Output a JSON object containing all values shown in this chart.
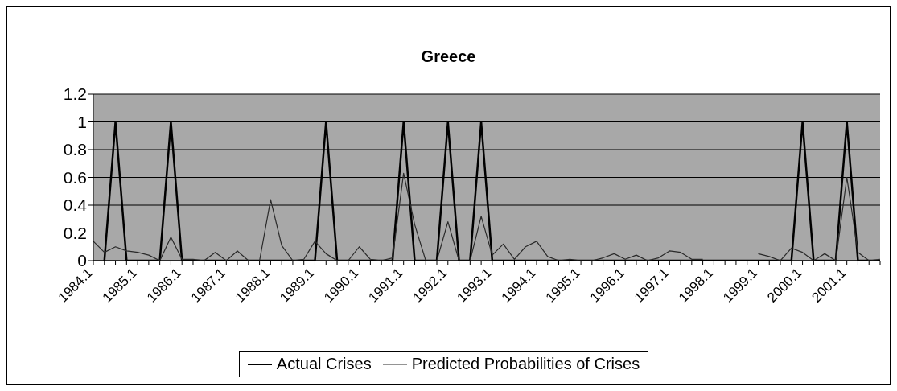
{
  "chart_data": {
    "type": "line",
    "title": "Greece",
    "categories": [
      "1984.1",
      null,
      null,
      null,
      "1985.1",
      null,
      null,
      null,
      "1986.1",
      null,
      null,
      null,
      "1987.1",
      null,
      null,
      null,
      "1988.1",
      null,
      null,
      null,
      "1989.1",
      null,
      null,
      null,
      "1990.1",
      null,
      null,
      null,
      "1991.1",
      null,
      null,
      null,
      "1992.1",
      null,
      null,
      null,
      "1993.1",
      null,
      null,
      null,
      "1994.1",
      null,
      null,
      null,
      "1995.1",
      null,
      null,
      null,
      "1996.1",
      null,
      null,
      null,
      "1997.1",
      null,
      null,
      null,
      "1998.1",
      null,
      null,
      null,
      "1999.1",
      null,
      null,
      null,
      "2000.1",
      null,
      null,
      null,
      "2001.1",
      null,
      null,
      null
    ],
    "series": [
      {
        "name": "Actual Crises",
        "color": "#000000",
        "values": [
          null,
          0,
          1,
          0,
          0,
          0,
          0,
          1,
          0,
          0,
          0,
          0,
          0,
          0,
          0,
          0,
          0,
          0,
          0,
          0,
          0,
          1,
          0,
          0,
          0,
          0,
          0,
          0,
          1,
          0,
          0,
          0,
          1,
          0,
          0,
          1,
          0,
          0,
          0,
          0,
          0,
          0,
          0,
          0,
          0,
          0,
          0,
          0,
          0,
          0,
          0,
          0,
          0,
          0,
          0,
          0,
          0,
          0,
          0,
          0,
          0,
          0,
          0,
          0,
          1,
          0,
          0,
          0,
          1,
          0,
          0,
          0
        ]
      },
      {
        "name": "Predicted Probabilities of Crises",
        "color": "#2a2a2a",
        "values": [
          0.14,
          0.06,
          0.1,
          0.07,
          0.06,
          0.04,
          0,
          0.17,
          0.01,
          0.01,
          0,
          0.06,
          0,
          0.07,
          0,
          0,
          0.44,
          0.11,
          0,
          0.01,
          0.14,
          0.05,
          0,
          0,
          0.1,
          0.01,
          0,
          0.02,
          0.63,
          0.26,
          0,
          0,
          0.28,
          0,
          0,
          0.32,
          0.04,
          0.12,
          0.01,
          0.1,
          0.14,
          0.03,
          0,
          0.01,
          0,
          0,
          0.02,
          0.05,
          0.01,
          0.04,
          0,
          0.02,
          0.07,
          0.06,
          0.01,
          0.01,
          null,
          null,
          null,
          null,
          0.05,
          0.03,
          0,
          0.09,
          0.06,
          0,
          0.05,
          0,
          0.6,
          0.06,
          0,
          0.01
        ]
      }
    ],
    "ylim": [
      0,
      1.2
    ],
    "yticks": [
      0,
      0.2,
      0.4,
      0.6,
      0.8,
      1,
      1.2
    ],
    "grid": "y",
    "legend": "bottom"
  }
}
